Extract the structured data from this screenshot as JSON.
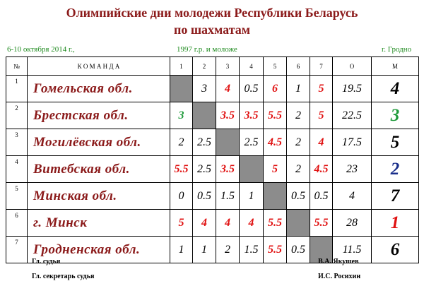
{
  "header": {
    "title_line1": "Олимпийские дни молодежи  Республики Беларусь",
    "title_line2": "по шахматам",
    "dates": "6-10 октября 2014 г.,",
    "age": "1997 г.р. и моложе",
    "place": "г. Гродно"
  },
  "table": {
    "columns": [
      "№",
      "К О М А Н Д А",
      "1",
      "2",
      "3",
      "4",
      "5",
      "6",
      "7",
      "О",
      "М"
    ],
    "rows": [
      [
        "1",
        "Гомельская обл.",
        null,
        "3",
        "4",
        "0.5",
        "6",
        "1",
        "5",
        "19.5",
        "4"
      ],
      [
        "2",
        "Брестская обл.",
        "3",
        null,
        "3.5",
        "3.5",
        "5.5",
        "2",
        "5",
        "22.5",
        "3"
      ],
      [
        "3",
        "Могилёвская обл.",
        "2",
        "2.5",
        null,
        "2.5",
        "4.5",
        "2",
        "4",
        "17.5",
        "5"
      ],
      [
        "4",
        "Витебская обл.",
        "5.5",
        "2.5",
        "3.5",
        null,
        "5",
        "2",
        "4.5",
        "23",
        "2"
      ],
      [
        "5",
        "Минская обл.",
        "0",
        "0.5",
        "1.5",
        "1",
        null,
        "0.5",
        "0.5",
        "4",
        "7"
      ],
      [
        "6",
        "г. Минск",
        "5",
        "4",
        "4",
        "4",
        "5.5",
        null,
        "5.5",
        "28",
        "1"
      ],
      [
        "7",
        "Гродненская обл.",
        "1",
        "1",
        "2",
        "1.5",
        "5.5",
        "0.5",
        null,
        "11.5",
        "6"
      ]
    ]
  },
  "footer": {
    "judge_label": "Гл. судья",
    "judge_name": "В.А. Якушев",
    "secretary_label": "Гл. секретарь судья",
    "secretary_name": "И.С. Росихин"
  }
}
